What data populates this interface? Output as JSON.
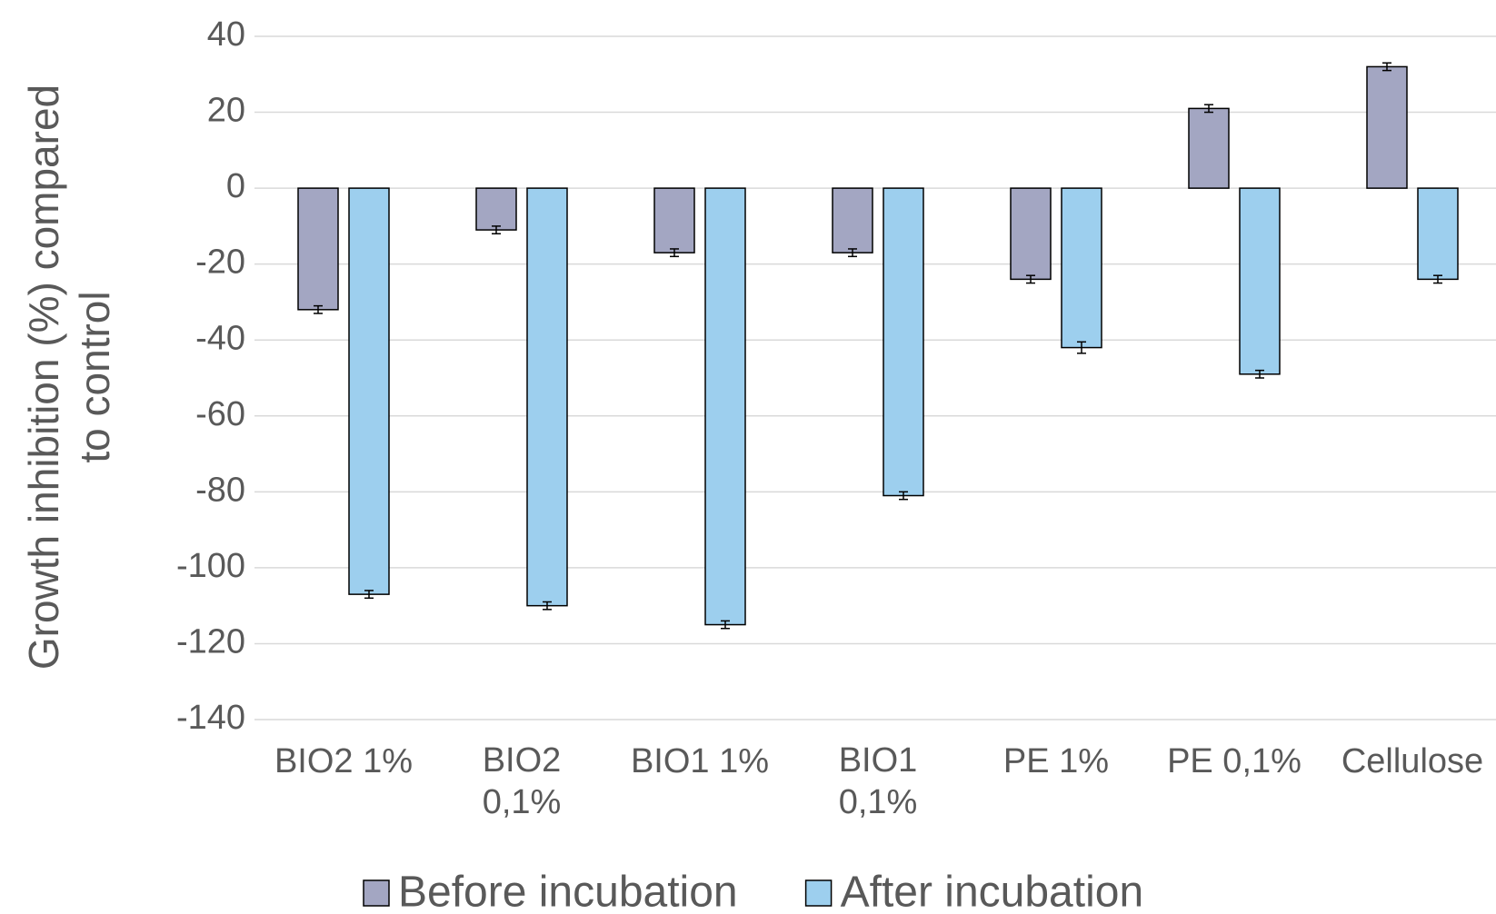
{
  "chart_data": {
    "type": "bar",
    "y_label": "Growth inhibition (%) compared to control",
    "categories": [
      "BIO2 1%",
      "BIO2 0,1%",
      "BIO1 1%",
      "BIO1 0,1%",
      "PE 1%",
      "PE 0,1%",
      "Cellulose"
    ],
    "series": [
      {
        "name": "Before incubation",
        "color": "#a3a6c2",
        "values": [
          -32,
          -11,
          -17,
          -17,
          -24,
          21,
          32
        ],
        "errors": [
          1,
          1,
          1,
          1,
          1,
          1,
          1
        ]
      },
      {
        "name": "After incubation",
        "color": "#9dcfee",
        "values": [
          -107,
          -110,
          -115,
          -81,
          -42,
          -49,
          -24
        ],
        "errors": [
          1,
          1,
          1,
          1,
          1.5,
          1,
          1
        ]
      }
    ],
    "ylim": [
      -140,
      40
    ],
    "yticks": [
      -140,
      -120,
      -100,
      -80,
      -60,
      -40,
      -20,
      0,
      20,
      40
    ],
    "grid": true,
    "legend": "bottom"
  }
}
